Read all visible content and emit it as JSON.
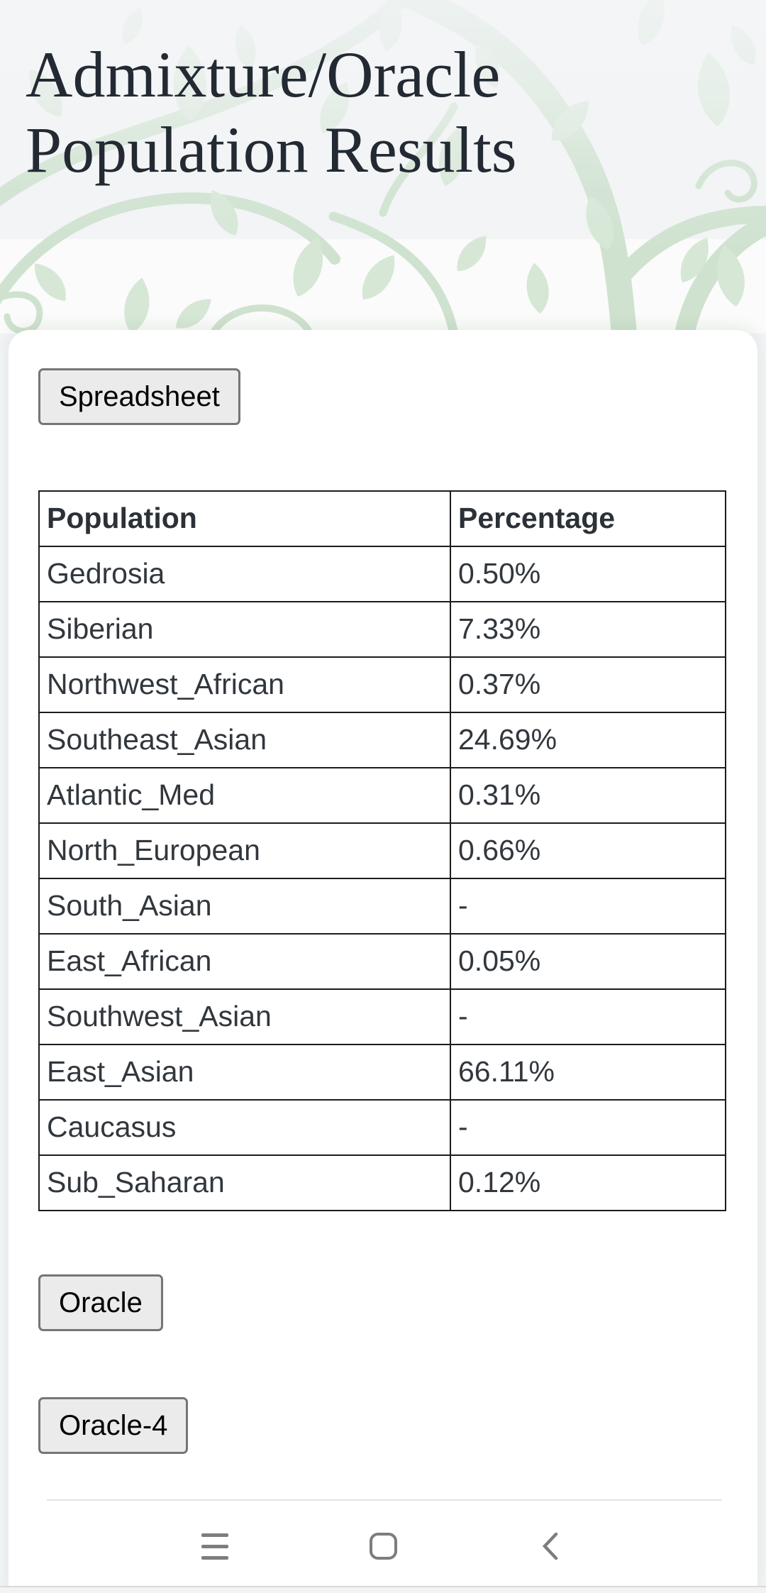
{
  "page": {
    "title": "Admixture/Oracle Population Results"
  },
  "toolbar": {
    "spreadsheet_button": "Spreadsheet"
  },
  "results_table": {
    "columns": [
      "Population",
      "Percentage"
    ],
    "rows": [
      {
        "population": "Gedrosia",
        "percentage": "0.50%"
      },
      {
        "population": "Siberian",
        "percentage": "7.33%"
      },
      {
        "population": "Northwest_African",
        "percentage": "0.37%"
      },
      {
        "population": "Southeast_Asian",
        "percentage": "24.69%"
      },
      {
        "population": "Atlantic_Med",
        "percentage": "0.31%"
      },
      {
        "population": "North_European",
        "percentage": "0.66%"
      },
      {
        "population": "South_Asian",
        "percentage": "-"
      },
      {
        "population": "East_African",
        "percentage": "0.05%"
      },
      {
        "population": "Southwest_Asian",
        "percentage": "-"
      },
      {
        "population": "East_Asian",
        "percentage": "66.11%"
      },
      {
        "population": "Caucasus",
        "percentage": "-"
      },
      {
        "population": "Sub_Saharan",
        "percentage": "0.12%"
      }
    ]
  },
  "actions": {
    "oracle_button": "Oracle",
    "oracle4_button": "Oracle-4"
  },
  "navbar": {
    "icons": [
      "recents-icon",
      "home-icon",
      "back-icon"
    ]
  },
  "colors": {
    "header_background": "#f2f4f6",
    "leaf_green": "#d6e7d6",
    "stem_green": "#cfe2cf",
    "card_background": "#ffffff",
    "title_text": "#232a33",
    "table_text": "#31373d",
    "table_border": "#1c1c1c",
    "button_background": "#ebebeb",
    "button_border": "#757575",
    "nav_icon_gray": "#7d7d7d",
    "footer_divider": "#e4e4e4"
  }
}
